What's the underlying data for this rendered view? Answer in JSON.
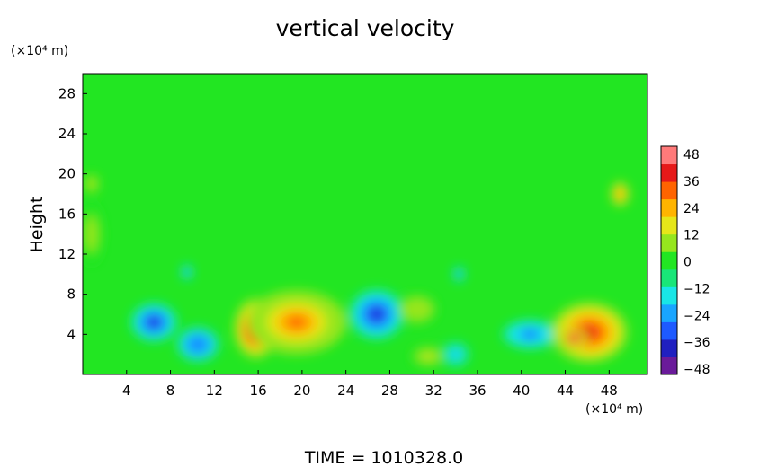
{
  "chart_data": {
    "type": "heatmap",
    "title": "vertical velocity",
    "ylabel": "Height",
    "y_unit_label": "(×10⁴ m)",
    "x_unit_label": "(×10⁴ m)",
    "time_label": "TIME  =  1010328.0",
    "xlim": [
      0,
      51.5
    ],
    "ylim": [
      0,
      30
    ],
    "x_ticks": [
      "4",
      "8",
      "12",
      "16",
      "20",
      "24",
      "28",
      "32",
      "36",
      "40",
      "44",
      "48"
    ],
    "y_ticks": [
      "4",
      "8",
      "12",
      "16",
      "20",
      "24",
      "28"
    ],
    "colorbar": {
      "range": [
        -48,
        48
      ],
      "tick_labels": [
        "48",
        "36",
        "24",
        "12",
        "0",
        "−12",
        "−24",
        "−36",
        "−48"
      ],
      "colors": [
        "#6a1b9a",
        "#2020c0",
        "#1e5aff",
        "#19a5ff",
        "#19e6e6",
        "#19e678",
        "#22e622",
        "#96e61e",
        "#e6e619",
        "#ffb400",
        "#ff6400",
        "#e61919",
        "#ff7a7a"
      ]
    },
    "background_value": 0,
    "features": [
      {
        "x": 6.5,
        "y": 5.2,
        "rx": 2.2,
        "ry": 2.0,
        "value": -38
      },
      {
        "x": 10.5,
        "y": 3.0,
        "rx": 2.0,
        "ry": 1.8,
        "value": -32
      },
      {
        "x": 9.5,
        "y": 10.2,
        "rx": 0.5,
        "ry": 0.8,
        "value": -28
      },
      {
        "x": 15.8,
        "y": 4.6,
        "rx": 2.0,
        "ry": 3.0,
        "value": 44
      },
      {
        "x": 19.5,
        "y": 5.2,
        "rx": 4.5,
        "ry": 3.2,
        "value": 26
      },
      {
        "x": 26.8,
        "y": 6.0,
        "rx": 2.6,
        "ry": 2.6,
        "value": -40
      },
      {
        "x": 30.5,
        "y": 6.5,
        "rx": 1.8,
        "ry": 1.5,
        "value": 10
      },
      {
        "x": 34.3,
        "y": 10.0,
        "rx": 0.5,
        "ry": 0.8,
        "value": -28
      },
      {
        "x": 34.0,
        "y": 2.0,
        "rx": 1.3,
        "ry": 1.3,
        "value": -20
      },
      {
        "x": 31.5,
        "y": 1.8,
        "rx": 1.5,
        "ry": 1.0,
        "value": 12
      },
      {
        "x": 40.8,
        "y": 4.0,
        "rx": 2.6,
        "ry": 1.5,
        "value": -30
      },
      {
        "x": 46.2,
        "y": 4.2,
        "rx": 3.5,
        "ry": 3.0,
        "value": 38
      },
      {
        "x": 44.8,
        "y": 3.6,
        "rx": 1.2,
        "ry": 1.0,
        "value": 46
      },
      {
        "x": 49.0,
        "y": 18.0,
        "rx": 0.8,
        "ry": 1.2,
        "value": 30
      },
      {
        "x": 0.8,
        "y": 19.0,
        "rx": 0.7,
        "ry": 1.0,
        "value": 12
      },
      {
        "x": 0.8,
        "y": 14.0,
        "rx": 1.0,
        "ry": 3.0,
        "value": 8
      }
    ]
  }
}
